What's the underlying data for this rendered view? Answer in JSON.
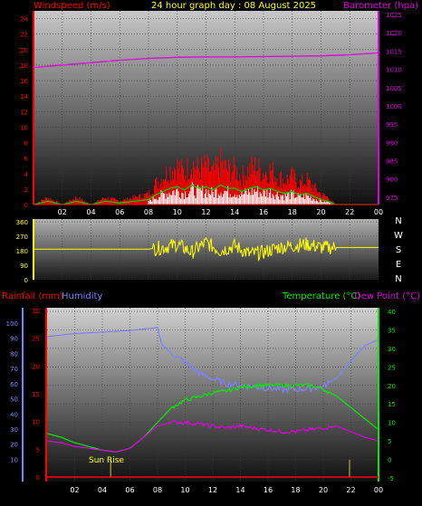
{
  "header": {
    "title": "24 hour graph day : 08 August 2025",
    "left_label": "Windspeed (m/s)",
    "right_label": "Barometer (hpa)"
  },
  "bottom_header": {
    "rain_label": "Rainfall (mm)",
    "humidity_label": "Humidity",
    "temp_label": "Temperature (°C)",
    "dew_label": "Dew Point (°C)"
  },
  "annotations": {
    "sunrise": "Sun Rise"
  },
  "colors": {
    "windspeed": "#ff0000",
    "gust": "#ffffff",
    "avg": "#00cc00",
    "barometer": "#e000e0",
    "direction": "#ffff00",
    "humidity": "#8080ff",
    "temperature": "#00ee00",
    "dewpoint": "#e000e0",
    "rain_axis": "#ff0000"
  },
  "chart_data": [
    {
      "type": "line",
      "name": "wind-barometer",
      "x_ticks": [
        "02",
        "04",
        "06",
        "08",
        "10",
        "12",
        "14",
        "16",
        "18",
        "20",
        "22",
        "00"
      ],
      "y_left_ticks": [
        "0",
        "2",
        "4",
        "6",
        "8",
        "10",
        "12",
        "14",
        "16",
        "18",
        "20",
        "22",
        "24"
      ],
      "y_left_range": [
        0,
        25
      ],
      "y_right_ticks": [
        "975",
        "980",
        "985",
        "990",
        "995",
        "1000",
        "1005",
        "1010",
        "1015",
        "1020",
        "1025"
      ],
      "y_right_range": [
        973,
        1026
      ],
      "series": [
        {
          "label": "Barometer (hpa)",
          "x": [
            0,
            2,
            4,
            6,
            8,
            10,
            12,
            14,
            16,
            18,
            20,
            22,
            24
          ],
          "values": [
            1010.5,
            1011.2,
            1011.8,
            1012.5,
            1013,
            1013.3,
            1013.4,
            1013.4,
            1013.5,
            1013.6,
            1013.7,
            1014,
            1014.5
          ]
        },
        {
          "label": "Windspeed (m/s)",
          "x": [
            0,
            1,
            2,
            3,
            4,
            5,
            6,
            7,
            8,
            8.5,
            9,
            9.5,
            10,
            10.5,
            11,
            11.5,
            12,
            12.5,
            13,
            13.5,
            14,
            14.5,
            15,
            15.5,
            16,
            16.5,
            17,
            17.5,
            18,
            18.5,
            19,
            19.5,
            20,
            20.5,
            21,
            22,
            23,
            24
          ],
          "values": [
            0,
            1,
            0,
            1,
            0,
            1,
            0.5,
            1,
            1.5,
            3,
            4,
            5,
            5.5,
            4.5,
            6,
            5,
            5.5,
            4.5,
            6,
            5,
            5,
            4,
            5,
            5.5,
            4.5,
            5,
            4,
            3.5,
            4,
            3,
            3.5,
            2.5,
            1.5,
            1,
            0,
            0,
            0,
            0
          ]
        }
      ]
    },
    {
      "type": "line",
      "name": "wind-direction",
      "y_ticks": [
        "360",
        "270",
        "180",
        "90",
        "0"
      ],
      "y_range": [
        0,
        360
      ],
      "compass": [
        "N",
        "W",
        "S",
        "E",
        "N"
      ],
      "series": [
        {
          "label": "Wind direction",
          "x": [
            0,
            8,
            9,
            10,
            11,
            12,
            13,
            14,
            15,
            16,
            17,
            18,
            19,
            20,
            21,
            24
          ],
          "values": [
            190,
            190,
            200,
            220,
            170,
            230,
            180,
            210,
            160,
            170,
            200,
            210,
            220,
            200,
            200,
            200
          ]
        }
      ]
    },
    {
      "type": "line",
      "name": "humidity-temperature",
      "x_ticks": [
        "02",
        "04",
        "06",
        "08",
        "10",
        "12",
        "14",
        "16",
        "18",
        "20",
        "22",
        "00"
      ],
      "y_rain_ticks": [
        "0",
        "5",
        "10",
        "15",
        "20",
        "25",
        "30"
      ],
      "y_humidity_ticks": [
        "10",
        "20",
        "30",
        "40",
        "50",
        "60",
        "70",
        "80",
        "90",
        "100"
      ],
      "y_temp_ticks": [
        "-5",
        "0",
        "5",
        "10",
        "15",
        "20",
        "25",
        "30",
        "35",
        "40"
      ],
      "temp_range": [
        -6,
        41
      ],
      "series": [
        {
          "label": "Humidity",
          "x": [
            0,
            2,
            4,
            6,
            7,
            8,
            8.3,
            9,
            10,
            11,
            12,
            13,
            14,
            15,
            16,
            17,
            18,
            19,
            20,
            21,
            22,
            23,
            24
          ],
          "values": [
            91,
            93,
            94,
            95,
            96,
            97,
            86,
            80,
            74,
            67,
            63,
            60,
            59,
            58,
            57,
            56,
            56,
            57,
            58,
            64,
            75,
            85,
            89
          ]
        },
        {
          "label": "Temperature (°C)",
          "x": [
            0,
            1,
            2,
            3,
            4,
            5,
            6,
            7,
            8,
            9,
            10,
            11,
            12,
            13,
            14,
            15,
            16,
            17,
            18,
            19,
            20,
            21,
            22,
            23,
            24
          ],
          "values": [
            7,
            6,
            4.5,
            3.5,
            2.5,
            2,
            3,
            6,
            10,
            14,
            16,
            17,
            18,
            18.5,
            19.5,
            20,
            20,
            20,
            20,
            20,
            19,
            17,
            14,
            11,
            8
          ]
        },
        {
          "label": "Dew Point (°C)",
          "x": [
            0,
            1,
            2,
            3,
            4,
            5,
            6,
            7,
            8,
            9,
            10,
            11,
            12,
            13,
            14,
            15,
            16,
            17,
            18,
            19,
            20,
            21,
            22,
            23,
            24
          ],
          "values": [
            5,
            4.5,
            3.5,
            3,
            2.5,
            2,
            3,
            6,
            9,
            10,
            10,
            9.5,
            9,
            8.5,
            9,
            8.5,
            8,
            7.5,
            7.5,
            8,
            8.5,
            9,
            7.5,
            6,
            5
          ]
        },
        {
          "label": "Rainfall (mm)",
          "x": [
            0,
            24
          ],
          "values": [
            0,
            0
          ]
        }
      ]
    }
  ]
}
